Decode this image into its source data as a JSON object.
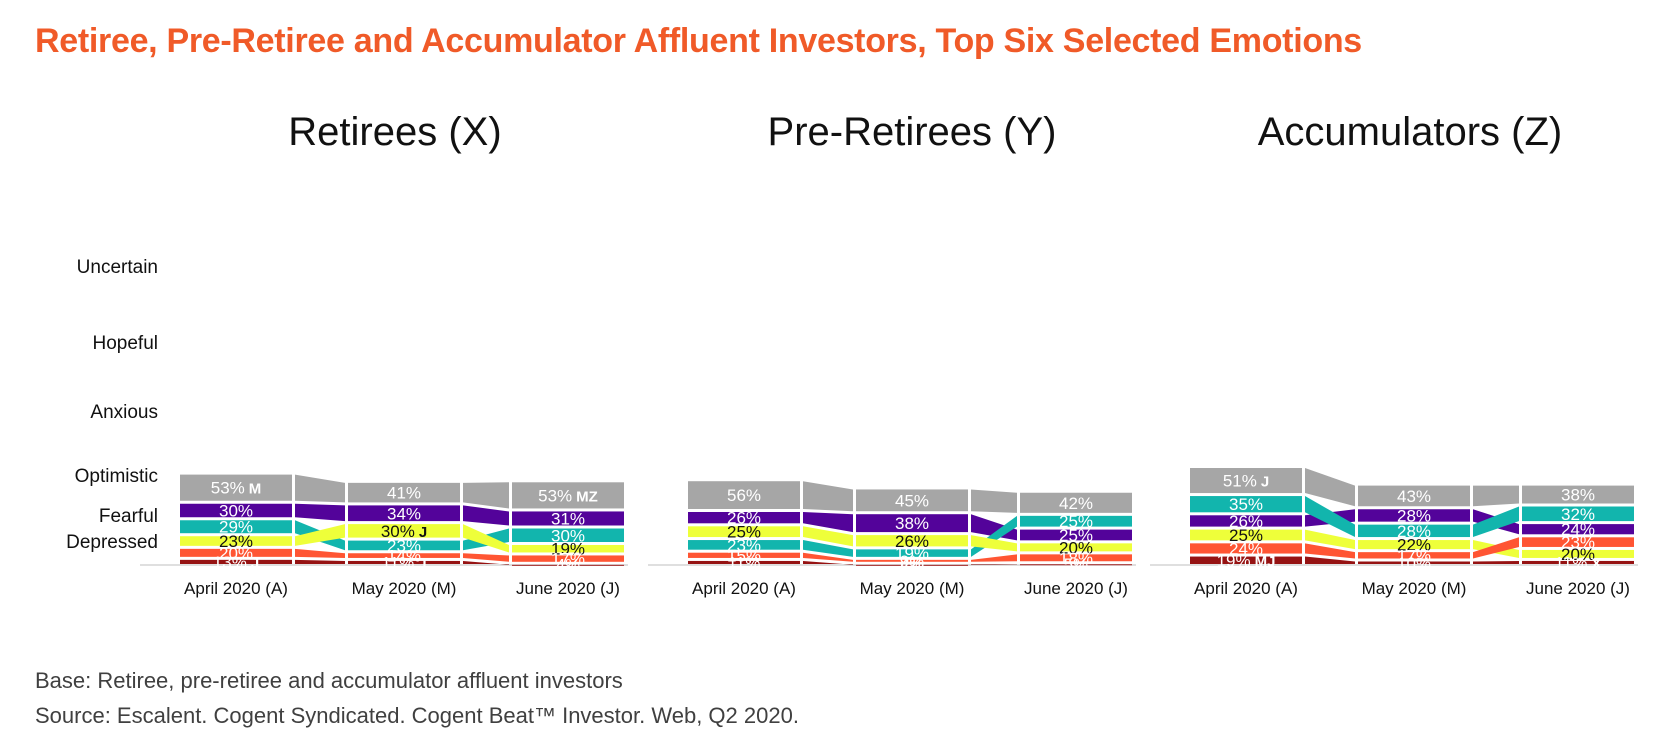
{
  "title": "Retiree, Pre-Retiree and Accumulator Affluent Investors, Top Six Selected Emotions",
  "footer": {
    "base": "Base: Retiree, pre-retiree and accumulator affluent investors",
    "source": "Source: Escalent. Cogent Syndicated. Cogent Beat™ Investor. Web, Q2 2020."
  },
  "colors": {
    "Uncertain": "#a6a6a6",
    "Hopeful": "#53039a",
    "Anxious": "#12b5ad",
    "Optimistic": "#eeff3a",
    "Fearful": "#ff5533",
    "Depressed": "#961313",
    "axis": "#bfbfbf"
  },
  "row_labels": [
    "Uncertain",
    "Hopeful",
    "Anxious",
    "Optimistic",
    "Fearful",
    "Depressed"
  ],
  "chart_data": [
    {
      "type": "stacked-bar-ribbon",
      "title": "Retirees (X)",
      "categories": [
        "April 2020 (A)",
        "May 2020 (M)",
        "June 2020 (J)"
      ],
      "bars": [
        [
          {
            "emotion": "Uncertain",
            "value": 53,
            "label": "53%",
            "sig": "M"
          },
          {
            "emotion": "Hopeful",
            "value": 30,
            "label": "30%",
            "sig": ""
          },
          {
            "emotion": "Anxious",
            "value": 29,
            "label": "29%",
            "sig": ""
          },
          {
            "emotion": "Optimistic",
            "value": 23,
            "label": "23%",
            "sig": ""
          },
          {
            "emotion": "Fearful",
            "value": 20,
            "label": "20%",
            "sig": ""
          },
          {
            "emotion": "Depressed",
            "value": 13,
            "label": "13%",
            "sig": "J"
          }
        ],
        [
          {
            "emotion": "Uncertain",
            "value": 41,
            "label": "41%",
            "sig": ""
          },
          {
            "emotion": "Hopeful",
            "value": 34,
            "label": "34%",
            "sig": ""
          },
          {
            "emotion": "Optimistic",
            "value": 30,
            "label": "30%",
            "sig": "J"
          },
          {
            "emotion": "Anxious",
            "value": 23,
            "label": "23%",
            "sig": ""
          },
          {
            "emotion": "Fearful",
            "value": 14,
            "label": "14%",
            "sig": ""
          },
          {
            "emotion": "Depressed",
            "value": 11,
            "label": "11%",
            "sig": "J"
          }
        ],
        [
          {
            "emotion": "Uncertain",
            "value": 53,
            "label": "53%",
            "sig": "MZ"
          },
          {
            "emotion": "Hopeful",
            "value": 31,
            "label": "31%",
            "sig": ""
          },
          {
            "emotion": "Anxious",
            "value": 30,
            "label": "30%",
            "sig": ""
          },
          {
            "emotion": "Optimistic",
            "value": 19,
            "label": "19%",
            "sig": ""
          },
          {
            "emotion": "Fearful",
            "value": 17,
            "label": "17%",
            "sig": ""
          },
          {
            "emotion": "Depressed",
            "value": 4,
            "label": "4%",
            "sig": ""
          }
        ]
      ]
    },
    {
      "type": "stacked-bar-ribbon",
      "title": "Pre-Retirees (Y)",
      "categories": [
        "April 2020 (A)",
        "May 2020 (M)",
        "June 2020 (J)"
      ],
      "bars": [
        [
          {
            "emotion": "Uncertain",
            "value": 56,
            "label": "56%",
            "sig": ""
          },
          {
            "emotion": "Hopeful",
            "value": 26,
            "label": "26%",
            "sig": ""
          },
          {
            "emotion": "Optimistic",
            "value": 25,
            "label": "25%",
            "sig": ""
          },
          {
            "emotion": "Anxious",
            "value": 23,
            "label": "23%",
            "sig": ""
          },
          {
            "emotion": "Fearful",
            "value": 15,
            "label": "15%",
            "sig": ""
          },
          {
            "emotion": "Depressed",
            "value": 11,
            "label": "11%",
            "sig": ""
          }
        ],
        [
          {
            "emotion": "Uncertain",
            "value": 45,
            "label": "45%",
            "sig": ""
          },
          {
            "emotion": "Hopeful",
            "value": 38,
            "label": "38%",
            "sig": ""
          },
          {
            "emotion": "Optimistic",
            "value": 26,
            "label": "26%",
            "sig": ""
          },
          {
            "emotion": "Anxious",
            "value": 19,
            "label": "19%",
            "sig": ""
          },
          {
            "emotion": "Fearful",
            "value": 9,
            "label": "9%",
            "sig": ""
          },
          {
            "emotion": "Depressed",
            "value": 4,
            "label": "4%",
            "sig": ""
          }
        ],
        [
          {
            "emotion": "Uncertain",
            "value": 42,
            "label": "42%",
            "sig": ""
          },
          {
            "emotion": "Anxious",
            "value": 25,
            "label": "25%",
            "sig": ""
          },
          {
            "emotion": "Hopeful",
            "value": 25,
            "label": "25%",
            "sig": ""
          },
          {
            "emotion": "Optimistic",
            "value": 20,
            "label": "20%",
            "sig": ""
          },
          {
            "emotion": "Fearful",
            "value": 18,
            "label": "18%",
            "sig": ""
          },
          {
            "emotion": "Depressed",
            "value": 5,
            "label": "5%",
            "sig": ""
          }
        ]
      ]
    },
    {
      "type": "stacked-bar-ribbon",
      "title": "Accumulators (Z)",
      "categories": [
        "April 2020 (A)",
        "May 2020 (M)",
        "June 2020 (J)"
      ],
      "bars": [
        [
          {
            "emotion": "Uncertain",
            "value": 51,
            "label": "51%",
            "sig": "J"
          },
          {
            "emotion": "Anxious",
            "value": 35,
            "label": "35%",
            "sig": ""
          },
          {
            "emotion": "Hopeful",
            "value": 26,
            "label": "26%",
            "sig": ""
          },
          {
            "emotion": "Optimistic",
            "value": 25,
            "label": "25%",
            "sig": ""
          },
          {
            "emotion": "Fearful",
            "value": 24,
            "label": "24%",
            "sig": ""
          },
          {
            "emotion": "Depressed",
            "value": 19,
            "label": "19%",
            "sig": "MJ"
          }
        ],
        [
          {
            "emotion": "Uncertain",
            "value": 43,
            "label": "43%",
            "sig": ""
          },
          {
            "emotion": "Hopeful",
            "value": 28,
            "label": "28%",
            "sig": ""
          },
          {
            "emotion": "Anxious",
            "value": 28,
            "label": "28%",
            "sig": ""
          },
          {
            "emotion": "Optimistic",
            "value": 22,
            "label": "22%",
            "sig": ""
          },
          {
            "emotion": "Fearful",
            "value": 17,
            "label": "17%",
            "sig": ""
          },
          {
            "emotion": "Depressed",
            "value": 10,
            "label": "10%",
            "sig": ""
          }
        ],
        [
          {
            "emotion": "Uncertain",
            "value": 38,
            "label": "38%",
            "sig": ""
          },
          {
            "emotion": "Anxious",
            "value": 32,
            "label": "32%",
            "sig": ""
          },
          {
            "emotion": "Hopeful",
            "value": 24,
            "label": "24%",
            "sig": ""
          },
          {
            "emotion": "Fearful",
            "value": 23,
            "label": "23%",
            "sig": ""
          },
          {
            "emotion": "Optimistic",
            "value": 20,
            "label": "20%",
            "sig": ""
          },
          {
            "emotion": "Depressed",
            "value": 11,
            "label": "11%",
            "sig": "X"
          }
        ]
      ]
    }
  ]
}
